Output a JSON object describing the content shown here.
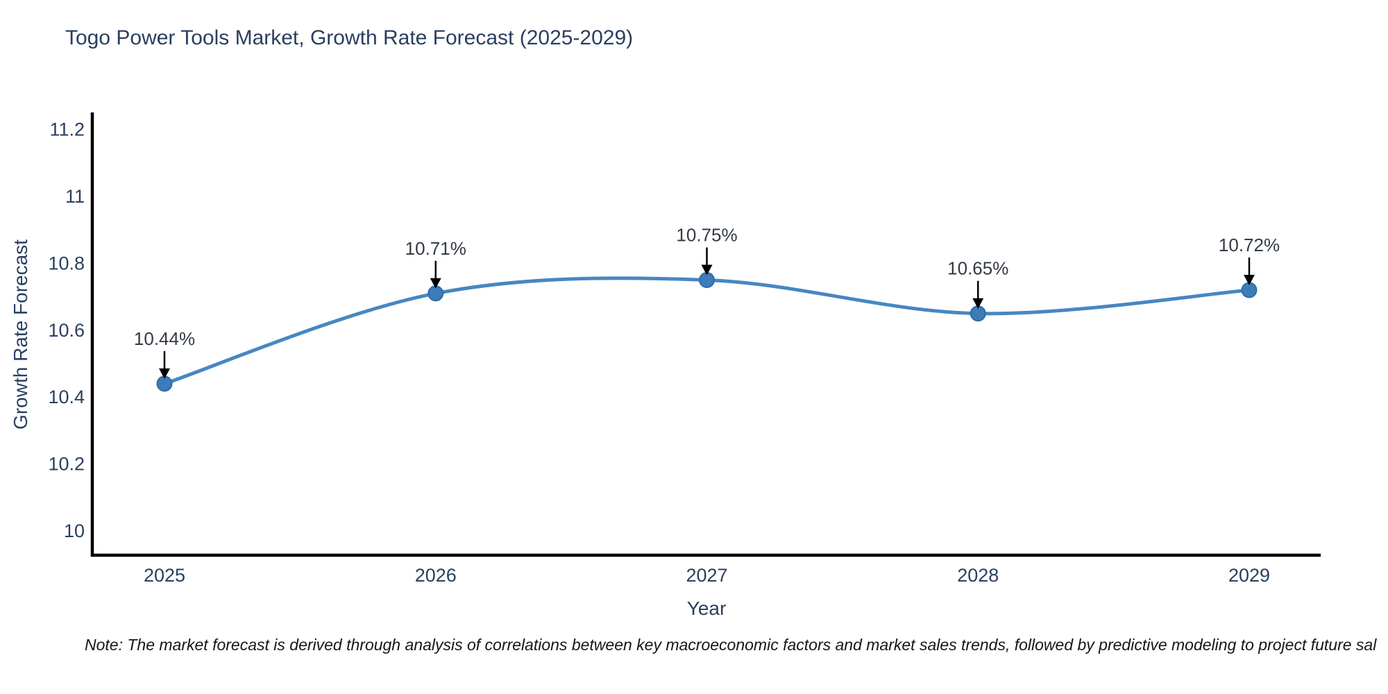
{
  "title": "Togo Power Tools Market, Growth Rate Forecast (2025-2029)",
  "note": "Note: The market forecast is derived through analysis of correlations between key macroeconomic factors and market sales trends, followed by predictive modeling to project future sal",
  "chart_data": {
    "type": "line",
    "title": "Togo Power Tools Market, Growth Rate Forecast (2025-2029)",
    "xlabel": "Year",
    "ylabel": "Growth Rate Forecast",
    "x": [
      "2025",
      "2026",
      "2027",
      "2028",
      "2029"
    ],
    "series": [
      {
        "name": "Growth Rate Forecast",
        "values": [
          10.44,
          10.71,
          10.75,
          10.65,
          10.72
        ]
      }
    ],
    "point_labels": [
      "10.44%",
      "10.71%",
      "10.75%",
      "10.65%",
      "10.72%"
    ],
    "yticks": [
      "10",
      "10.2",
      "10.4",
      "10.6",
      "10.8",
      "11",
      "11.2"
    ],
    "ytick_values": [
      10,
      10.2,
      10.4,
      10.6,
      10.8,
      11,
      11.2
    ],
    "ylim": [
      9.92,
      11.25
    ],
    "grid": false,
    "legend": "none",
    "line_shape": "spline",
    "annotation_arrows": true,
    "colors": {
      "line": "#4787c1",
      "marker_fill": "#3c7cb8",
      "marker_edge": "#2e6ba6",
      "axis_line": "#000000",
      "tick_text": "#2a3f5f",
      "title_text": "#2a3f5f",
      "annotation_text": "#333a44",
      "arrow": "#000000",
      "note_text": "#161616",
      "background": "#ffffff"
    }
  }
}
